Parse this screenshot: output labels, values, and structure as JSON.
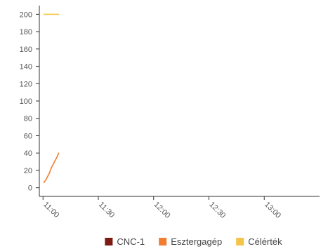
{
  "chart_data": {
    "type": "line",
    "title": "",
    "xlabel": "",
    "ylabel": "",
    "x_tick_labels": [
      "11:00",
      "11:30",
      "12:00",
      "12:30",
      "13:00"
    ],
    "y_tick_labels": [
      "0",
      "20",
      "40",
      "60",
      "80",
      "100",
      "120",
      "140",
      "160",
      "180",
      "200"
    ],
    "ylim": [
      -10,
      210
    ],
    "xlim_minutes": [
      -2,
      150
    ],
    "grid": false,
    "legend_position": "bottom",
    "series": [
      {
        "name": "CNC-1",
        "color": "#7b1a12",
        "points": []
      },
      {
        "name": "Esztergagép",
        "color": "#f07d30",
        "points": [
          [
            0.5,
            6
          ],
          [
            1.5,
            9
          ],
          [
            2.5,
            13
          ],
          [
            3.5,
            17
          ],
          [
            4.5,
            23
          ],
          [
            5.5,
            27
          ],
          [
            6.5,
            31
          ],
          [
            7.5,
            35
          ],
          [
            8.5,
            40
          ]
        ]
      },
      {
        "name": "Célérték",
        "color": "#f5c34a",
        "points": [
          [
            0.5,
            200
          ],
          [
            8.5,
            200
          ]
        ]
      }
    ]
  }
}
